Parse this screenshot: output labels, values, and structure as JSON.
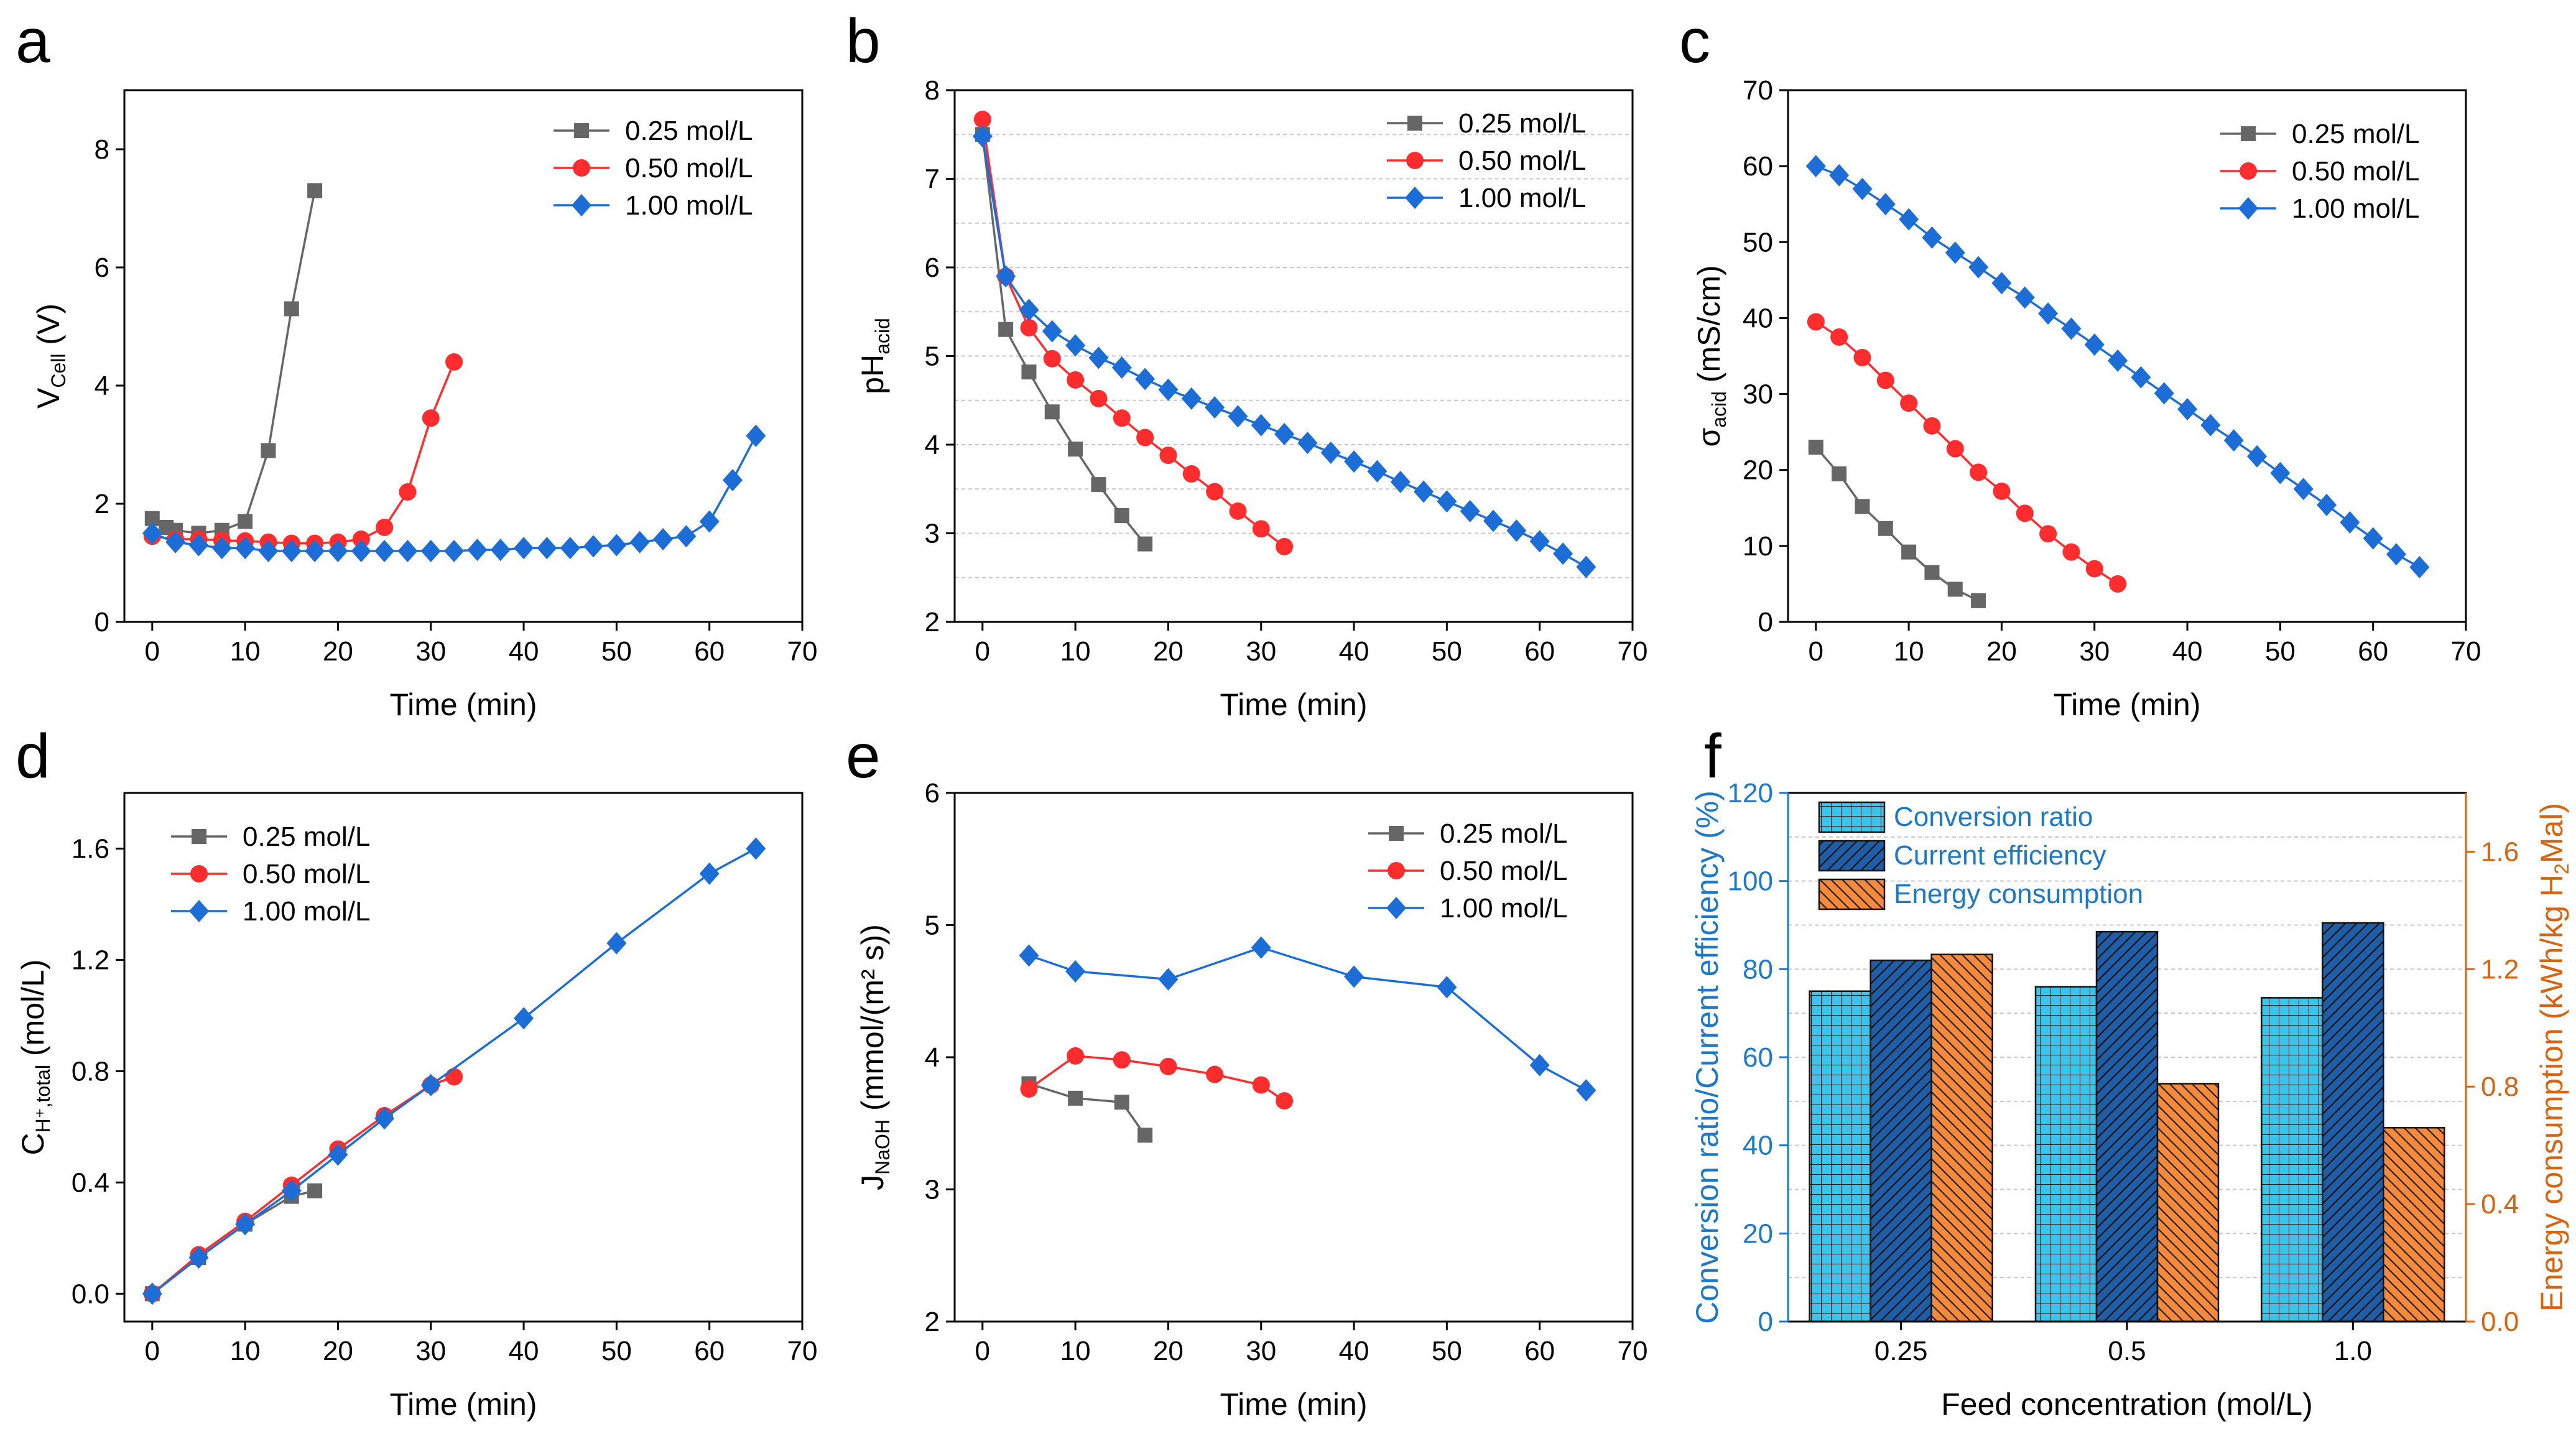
{
  "figure": {
    "panels": [
      "a",
      "b",
      "c",
      "d",
      "e",
      "f"
    ]
  },
  "colors": {
    "s025": "#666666",
    "s050": "#ff2d2d",
    "s100": "#1c6ed6",
    "bar_conversion": "#35c6ee",
    "bar_current": "#1f5ea6",
    "bar_energy": "#f58a3c",
    "left_axis_text": "#1c78c8",
    "right_axis_text": "#d8640f"
  },
  "legend": {
    "s025": "0.25 mol/L",
    "s050": "0.50 mol/L",
    "s100": "1.00 mol/L"
  },
  "chart_data": [
    {
      "panel": "a",
      "type": "line",
      "title": "",
      "xlabel": "Time (min)",
      "ylabel": {
        "base": "V",
        "sub": "Cell",
        "tail": " (V)"
      },
      "xlim": [
        -3,
        70
      ],
      "ylim": [
        0,
        9
      ],
      "xticks": [
        0,
        10,
        20,
        30,
        40,
        50,
        60,
        70
      ],
      "yticks": [
        0,
        2,
        4,
        6,
        8
      ],
      "legend_position": "top-right",
      "series": [
        {
          "name": "0.25 mol/L",
          "key": "s025",
          "marker": "square",
          "x": [
            0,
            1.5,
            2.5,
            5,
            7.5,
            10,
            12.5,
            15,
            17.5
          ],
          "y": [
            1.75,
            1.6,
            1.55,
            1.5,
            1.55,
            1.7,
            2.9,
            5.3,
            7.3
          ]
        },
        {
          "name": "0.50 mol/L",
          "key": "s050",
          "marker": "circle",
          "x": [
            0,
            2.5,
            5,
            7.5,
            10,
            12.5,
            15,
            17.5,
            20,
            22.5,
            25,
            27.5,
            30,
            32.5
          ],
          "y": [
            1.45,
            1.4,
            1.4,
            1.38,
            1.37,
            1.35,
            1.33,
            1.33,
            1.35,
            1.4,
            1.6,
            2.2,
            3.45,
            4.4
          ]
        },
        {
          "name": "1.00 mol/L",
          "key": "s100",
          "marker": "diamond",
          "x": [
            0,
            2.5,
            5,
            7.5,
            10,
            12.5,
            15,
            17.5,
            20,
            22.5,
            25,
            27.5,
            30,
            32.5,
            35,
            37.5,
            40,
            42.5,
            45,
            47.5,
            50,
            52.5,
            55,
            57.5,
            60,
            62.5,
            65
          ],
          "y": [
            1.5,
            1.35,
            1.3,
            1.25,
            1.25,
            1.2,
            1.2,
            1.2,
            1.2,
            1.2,
            1.2,
            1.2,
            1.2,
            1.2,
            1.22,
            1.22,
            1.25,
            1.25,
            1.25,
            1.28,
            1.3,
            1.35,
            1.4,
            1.45,
            1.7,
            2.4,
            3.15
          ]
        }
      ]
    },
    {
      "panel": "b",
      "type": "line",
      "title": "",
      "xlabel": "Time (min)",
      "ylabel": {
        "base": "pH",
        "sub": "acid",
        "tail": ""
      },
      "xlim": [
        -3,
        70
      ],
      "ylim": [
        2,
        8
      ],
      "xticks": [
        0,
        10,
        20,
        30,
        40,
        50,
        60,
        70
      ],
      "yticks": [
        2,
        3,
        4,
        5,
        6,
        7,
        8
      ],
      "grid": true,
      "grid_y": [
        2.5,
        3,
        3.5,
        4,
        4.5,
        5,
        5.5,
        6,
        6.5,
        7,
        7.5
      ],
      "legend_position": "top-right",
      "series": [
        {
          "name": "0.25 mol/L",
          "key": "s025",
          "marker": "square",
          "x": [
            0,
            2.5,
            5,
            7.5,
            10,
            12.5,
            15,
            17.5
          ],
          "y": [
            7.5,
            5.3,
            4.82,
            4.37,
            3.95,
            3.55,
            3.2,
            2.88
          ]
        },
        {
          "name": "0.50 mol/L",
          "key": "s050",
          "marker": "circle",
          "x": [
            0,
            2.5,
            5,
            7.5,
            10,
            12.5,
            15,
            17.5,
            20,
            22.5,
            25,
            27.5,
            30,
            32.5
          ],
          "y": [
            7.67,
            5.9,
            5.32,
            4.97,
            4.73,
            4.52,
            4.3,
            4.08,
            3.88,
            3.67,
            3.47,
            3.25,
            3.05,
            2.85
          ]
        },
        {
          "name": "1.00 mol/L",
          "key": "s100",
          "marker": "diamond",
          "x": [
            0,
            2.5,
            5,
            7.5,
            10,
            12.5,
            15,
            17.5,
            20,
            22.5,
            25,
            27.5,
            30,
            32.5,
            35,
            37.5,
            40,
            42.5,
            45,
            47.5,
            50,
            52.5,
            55,
            57.5,
            60,
            62.5,
            65
          ],
          "y": [
            7.48,
            5.9,
            5.52,
            5.28,
            5.12,
            4.98,
            4.87,
            4.74,
            4.62,
            4.52,
            4.42,
            4.32,
            4.22,
            4.12,
            4.02,
            3.91,
            3.81,
            3.7,
            3.58,
            3.47,
            3.36,
            3.25,
            3.14,
            3.03,
            2.91,
            2.77,
            2.62
          ]
        }
      ]
    },
    {
      "panel": "c",
      "type": "line",
      "title": "",
      "xlabel": "Time (min)",
      "ylabel": {
        "base": "σ",
        "sub": "acid",
        "tail": " (mS/cm)"
      },
      "xlim": [
        -3,
        70
      ],
      "ylim": [
        0,
        70
      ],
      "xticks": [
        0,
        10,
        20,
        30,
        40,
        50,
        60,
        70
      ],
      "yticks": [
        0,
        10,
        20,
        30,
        40,
        50,
        60,
        70
      ],
      "legend_position": "top-right",
      "series": [
        {
          "name": "0.25 mol/L",
          "key": "s025",
          "marker": "square",
          "x": [
            0,
            2.5,
            5,
            7.5,
            10,
            12.5,
            15,
            17.5
          ],
          "y": [
            23,
            19.5,
            15.2,
            12.3,
            9.2,
            6.5,
            4.3,
            2.8
          ]
        },
        {
          "name": "0.50 mol/L",
          "key": "s050",
          "marker": "circle",
          "x": [
            0,
            2.5,
            5,
            7.5,
            10,
            12.5,
            15,
            17.5,
            20,
            22.5,
            25,
            27.5,
            30,
            32.5
          ],
          "y": [
            39.5,
            37.5,
            34.8,
            31.8,
            28.8,
            25.8,
            22.8,
            19.7,
            17.2,
            14.3,
            11.6,
            9.2,
            7.0,
            5.0
          ]
        },
        {
          "name": "1.00 mol/L",
          "key": "s100",
          "marker": "diamond",
          "x": [
            0,
            2.5,
            5,
            7.5,
            10,
            12.5,
            15,
            17.5,
            20,
            22.5,
            25,
            27.5,
            30,
            32.5,
            35,
            37.5,
            40,
            42.5,
            45,
            47.5,
            50,
            52.5,
            55,
            57.5,
            60,
            62.5,
            65
          ],
          "y": [
            60,
            58.8,
            57,
            55,
            53,
            50.6,
            48.6,
            46.7,
            44.6,
            42.7,
            40.6,
            38.6,
            36.5,
            34.4,
            32.2,
            30.1,
            28,
            25.9,
            23.9,
            21.8,
            19.6,
            17.5,
            15.4,
            13.1,
            11,
            8.9,
            7.2
          ]
        }
      ]
    },
    {
      "panel": "d",
      "type": "line",
      "title": "",
      "xlabel": "Time (min)",
      "ylabel": {
        "base": "C",
        "sub": "H⁺,total",
        "tail": "  (mol/L)"
      },
      "xlim": [
        -3,
        70
      ],
      "ylim": [
        -0.1,
        1.8
      ],
      "xticks": [
        0,
        10,
        20,
        30,
        40,
        50,
        60,
        70
      ],
      "yticks": [
        0.0,
        0.4,
        0.8,
        1.2,
        1.6
      ],
      "ytick_labels": [
        "0.0",
        "0.4",
        "0.8",
        "1.2",
        "1.6"
      ],
      "legend_position": "top-left",
      "series": [
        {
          "name": "0.25 mol/L",
          "key": "s025",
          "marker": "square",
          "x": [
            0,
            5,
            10,
            15,
            17.5
          ],
          "y": [
            0,
            0.13,
            0.25,
            0.35,
            0.37
          ]
        },
        {
          "name": "0.50 mol/L",
          "key": "s050",
          "marker": "circle",
          "x": [
            0,
            5,
            10,
            15,
            20,
            25,
            30,
            32.5
          ],
          "y": [
            0,
            0.14,
            0.26,
            0.39,
            0.52,
            0.64,
            0.75,
            0.78
          ]
        },
        {
          "name": "1.00 mol/L",
          "key": "s100",
          "marker": "diamond",
          "x": [
            0,
            5,
            10,
            15,
            20,
            25,
            30,
            40,
            50,
            60,
            65
          ],
          "y": [
            0,
            0.13,
            0.25,
            0.37,
            0.5,
            0.63,
            0.75,
            0.99,
            1.26,
            1.51,
            1.6
          ]
        }
      ]
    },
    {
      "panel": "e",
      "type": "line",
      "title": "",
      "xlabel": "Time (min)",
      "ylabel": {
        "base": "J",
        "sub": "NaOH",
        "tail": " (mmol/(m² s))"
      },
      "xlim": [
        -3,
        70
      ],
      "ylim": [
        2,
        6
      ],
      "xticks": [
        0,
        10,
        20,
        30,
        40,
        50,
        60,
        70
      ],
      "yticks": [
        2,
        3,
        4,
        5,
        6
      ],
      "legend_position": "top-right",
      "series": [
        {
          "name": "0.25 mol/L",
          "key": "s025",
          "marker": "square",
          "x": [
            5,
            10,
            15,
            17.5
          ],
          "y": [
            3.8,
            3.69,
            3.66,
            3.41
          ]
        },
        {
          "name": "0.50 mol/L",
          "key": "s050",
          "marker": "circle",
          "x": [
            5,
            10,
            15,
            20,
            25,
            30,
            32.5
          ],
          "y": [
            3.76,
            4.01,
            3.98,
            3.93,
            3.87,
            3.79,
            3.67
          ]
        },
        {
          "name": "1.00 mol/L",
          "key": "s100",
          "marker": "diamond",
          "x": [
            5,
            10,
            20,
            30,
            40,
            50,
            60,
            65
          ],
          "y": [
            4.77,
            4.65,
            4.59,
            4.83,
            4.61,
            4.53,
            3.94,
            3.75
          ]
        }
      ]
    },
    {
      "panel": "f",
      "type": "bar",
      "title": "",
      "xlabel": "Feed concentration (mol/L)",
      "ylabel": "Conversion ratio/Current efficiency (%)",
      "y2label": {
        "base": "Energy consumption (kWh/kg H",
        "sub": "2",
        "tail": "Mal)"
      },
      "categories": [
        "0.25",
        "0.5",
        "1.0"
      ],
      "ylim": [
        0,
        120
      ],
      "yticks": [
        0,
        20,
        40,
        60,
        80,
        100,
        120
      ],
      "y2lim": [
        0,
        1.8
      ],
      "y2ticks": [
        0.0,
        0.4,
        0.8,
        1.2,
        1.6
      ],
      "y2tick_labels": [
        "0.0",
        "0.4",
        "0.8",
        "1.2",
        "1.6"
      ],
      "grid_y": [
        10,
        20,
        30,
        40,
        50,
        60,
        70,
        80,
        90,
        100,
        110
      ],
      "legend_position": "top-left",
      "series": [
        {
          "name": "Conversion ratio",
          "key": "bar_conversion",
          "pattern": "grid",
          "axis": "left",
          "values": [
            75,
            76,
            73.5
          ]
        },
        {
          "name": "Current efficiency",
          "key": "bar_current",
          "pattern": "hatch",
          "axis": "left",
          "values": [
            82,
            88.5,
            90.5
          ]
        },
        {
          "name": "Energy consumption",
          "key": "bar_energy",
          "pattern": "hatch",
          "axis": "right",
          "values": [
            1.25,
            0.81,
            0.66
          ]
        }
      ]
    }
  ]
}
